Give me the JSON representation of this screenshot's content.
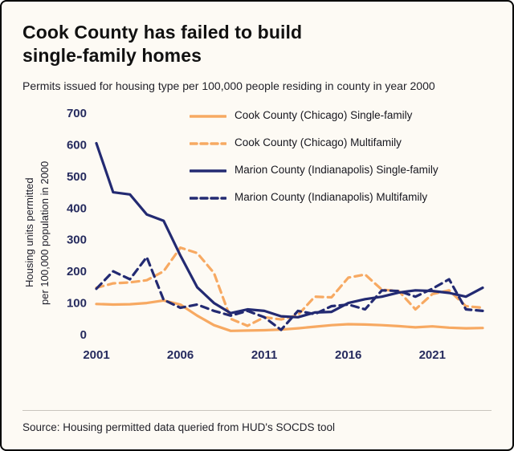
{
  "header": {
    "title_line1": "Cook County has failed to build",
    "title_line2": "single-family homes",
    "subtitle": "Permits issued for housing type per 100,000 people residing in county in year 2000"
  },
  "footer": {
    "source": "Source: Housing permitted data queried from HUD's SOCDS tool"
  },
  "colors": {
    "cook_orange": "#f7a962",
    "marion_navy": "#232a72",
    "background": "#fdfaf4",
    "axis_text": "#262b5e"
  },
  "chart_data": {
    "type": "line",
    "title": "Cook County has failed to build single-family homes",
    "subtitle": "Permits issued for housing type per 100,000 people residing in county in year 2000",
    "ylabel_line1": "Housing units permitted",
    "ylabel_line2": "per 100,000 population in 2000",
    "ylabel": "Housing units permitted per 100,000 population in 2000",
    "xlabel": "",
    "grid": false,
    "legend_position": "top-inside",
    "ylim": [
      0,
      700
    ],
    "y_ticks": [
      0,
      100,
      200,
      300,
      400,
      500,
      600,
      700
    ],
    "x_ticks": [
      2001,
      2006,
      2011,
      2016,
      2021
    ],
    "x": [
      2001,
      2002,
      2003,
      2004,
      2005,
      2006,
      2007,
      2008,
      2009,
      2010,
      2011,
      2012,
      2013,
      2014,
      2015,
      2016,
      2017,
      2018,
      2019,
      2020,
      2021,
      2022,
      2023,
      2024
    ],
    "series": [
      {
        "name": "Cook County (Chicago) Single-family",
        "color": "#f7a962",
        "dash": "solid",
        "values": [
          97,
          95,
          96,
          100,
          108,
          95,
          60,
          30,
          12,
          13,
          14,
          16,
          20,
          25,
          30,
          33,
          32,
          30,
          27,
          23,
          26,
          22,
          20,
          21
        ]
      },
      {
        "name": "Cook County (Chicago) Multifamily",
        "color": "#f7a962",
        "dash": "dashed",
        "values": [
          148,
          162,
          165,
          172,
          200,
          275,
          258,
          195,
          50,
          28,
          55,
          48,
          62,
          120,
          118,
          180,
          190,
          142,
          138,
          80,
          128,
          140,
          90,
          85
        ]
      },
      {
        "name": "Marion County (Indianapolis) Single-family",
        "color": "#232a72",
        "dash": "solid",
        "values": [
          605,
          450,
          443,
          380,
          360,
          250,
          150,
          100,
          68,
          80,
          75,
          58,
          55,
          70,
          72,
          100,
          112,
          120,
          133,
          140,
          138,
          132,
          120,
          148
        ]
      },
      {
        "name": "Marion County (Indianapolis) Multifamily",
        "color": "#232a72",
        "dash": "dashed",
        "values": [
          145,
          200,
          175,
          245,
          110,
          85,
          95,
          75,
          60,
          75,
          55,
          15,
          75,
          65,
          90,
          95,
          80,
          140,
          138,
          120,
          145,
          175,
          80,
          75
        ]
      }
    ]
  }
}
